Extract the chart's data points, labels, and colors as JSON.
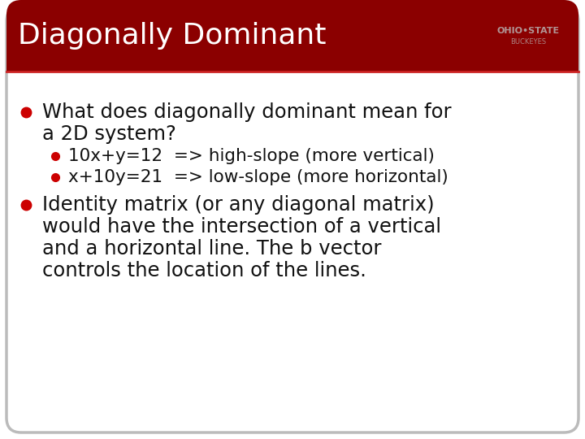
{
  "title": "Diagonally Dominant",
  "title_bg_top": "#8B0000",
  "title_bg_bottom": "#6B0000",
  "title_text_color": "#FFFFFF",
  "slide_bg_color": "#FFFFFF",
  "slide_border_color": "#BBBBBB",
  "bullet_color": "#CC0000",
  "text_color": "#111111",
  "bullet1_line1": "What does diagonally dominant mean for",
  "bullet1_line2": "a 2D system?",
  "sub_bullet1": "10x+y=12  => high-slope (more vertical)",
  "sub_bullet2": "x+10y=21  => low-slope (more horizontal)",
  "bullet2_line1": "Identity matrix (or any diagonal matrix)",
  "bullet2_line2": "would have the intersection of a vertical",
  "bullet2_line3": "and a horizontal line. The b vector",
  "bullet2_line4": "controls the location of the lines.",
  "title_fontsize": 26,
  "body_fontsize": 17.5,
  "sub_fontsize": 15.5
}
